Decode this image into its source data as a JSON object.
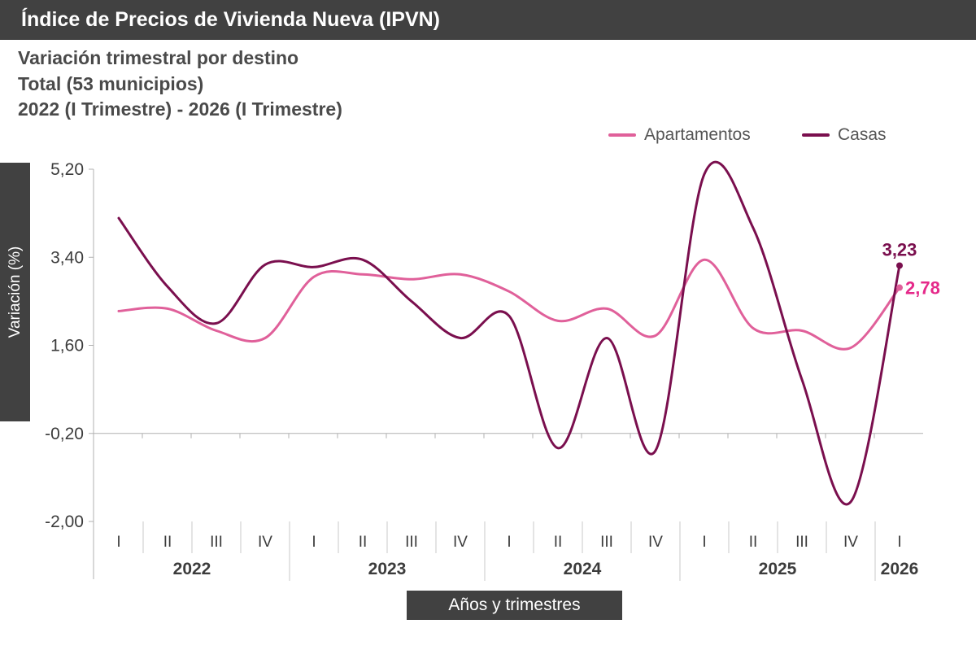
{
  "header": {
    "title": "Índice de Precios de Vivienda Nueva  (IPVN)",
    "subtitle_lines": [
      "Variación trimestral por destino",
      "Total (53 municipios)",
      "2022 (I Trimestre) - 2026 (I Trimestre)"
    ]
  },
  "colors": {
    "apartamentos": "#e0609a",
    "casas": "#7a0f4e",
    "apartamentos_label": "#e5298a",
    "axis": "#b0b0b0",
    "dark_box": "#414141"
  },
  "chart_data": {
    "type": "line",
    "ylabel": "Variación (%)",
    "xlabel": "Años y trimestres",
    "ylim": [
      -2.0,
      5.2
    ],
    "yticks": [
      "5,20",
      "3,40",
      "1,60",
      "-0,20",
      "-2,00"
    ],
    "ytick_values": [
      5.2,
      3.4,
      1.6,
      -0.2,
      -2.0
    ],
    "quarters": [
      "I",
      "II",
      "III",
      "IV",
      "I",
      "II",
      "III",
      "IV",
      "I",
      "II",
      "III",
      "IV",
      "I",
      "II",
      "III",
      "IV",
      "I"
    ],
    "years": [
      {
        "label": "2022",
        "quarters": 4
      },
      {
        "label": "2023",
        "quarters": 4
      },
      {
        "label": "2024",
        "quarters": 4
      },
      {
        "label": "2025",
        "quarters": 4
      },
      {
        "label": "2026",
        "quarters": 1
      }
    ],
    "legend_position": "top-right",
    "series": [
      {
        "name": "Apartamentos",
        "values": [
          2.3,
          2.35,
          1.9,
          1.75,
          3.0,
          3.05,
          2.95,
          3.05,
          2.7,
          2.1,
          2.35,
          1.8,
          3.35,
          1.95,
          1.9,
          1.55,
          2.78
        ],
        "end_label": "2,78"
      },
      {
        "name": "Casas",
        "values": [
          4.2,
          2.8,
          2.05,
          3.25,
          3.2,
          3.35,
          2.5,
          1.75,
          2.2,
          -0.5,
          1.75,
          -0.55,
          5.1,
          4.0,
          0.9,
          -1.6,
          3.23
        ],
        "end_label": "3,23"
      }
    ]
  }
}
